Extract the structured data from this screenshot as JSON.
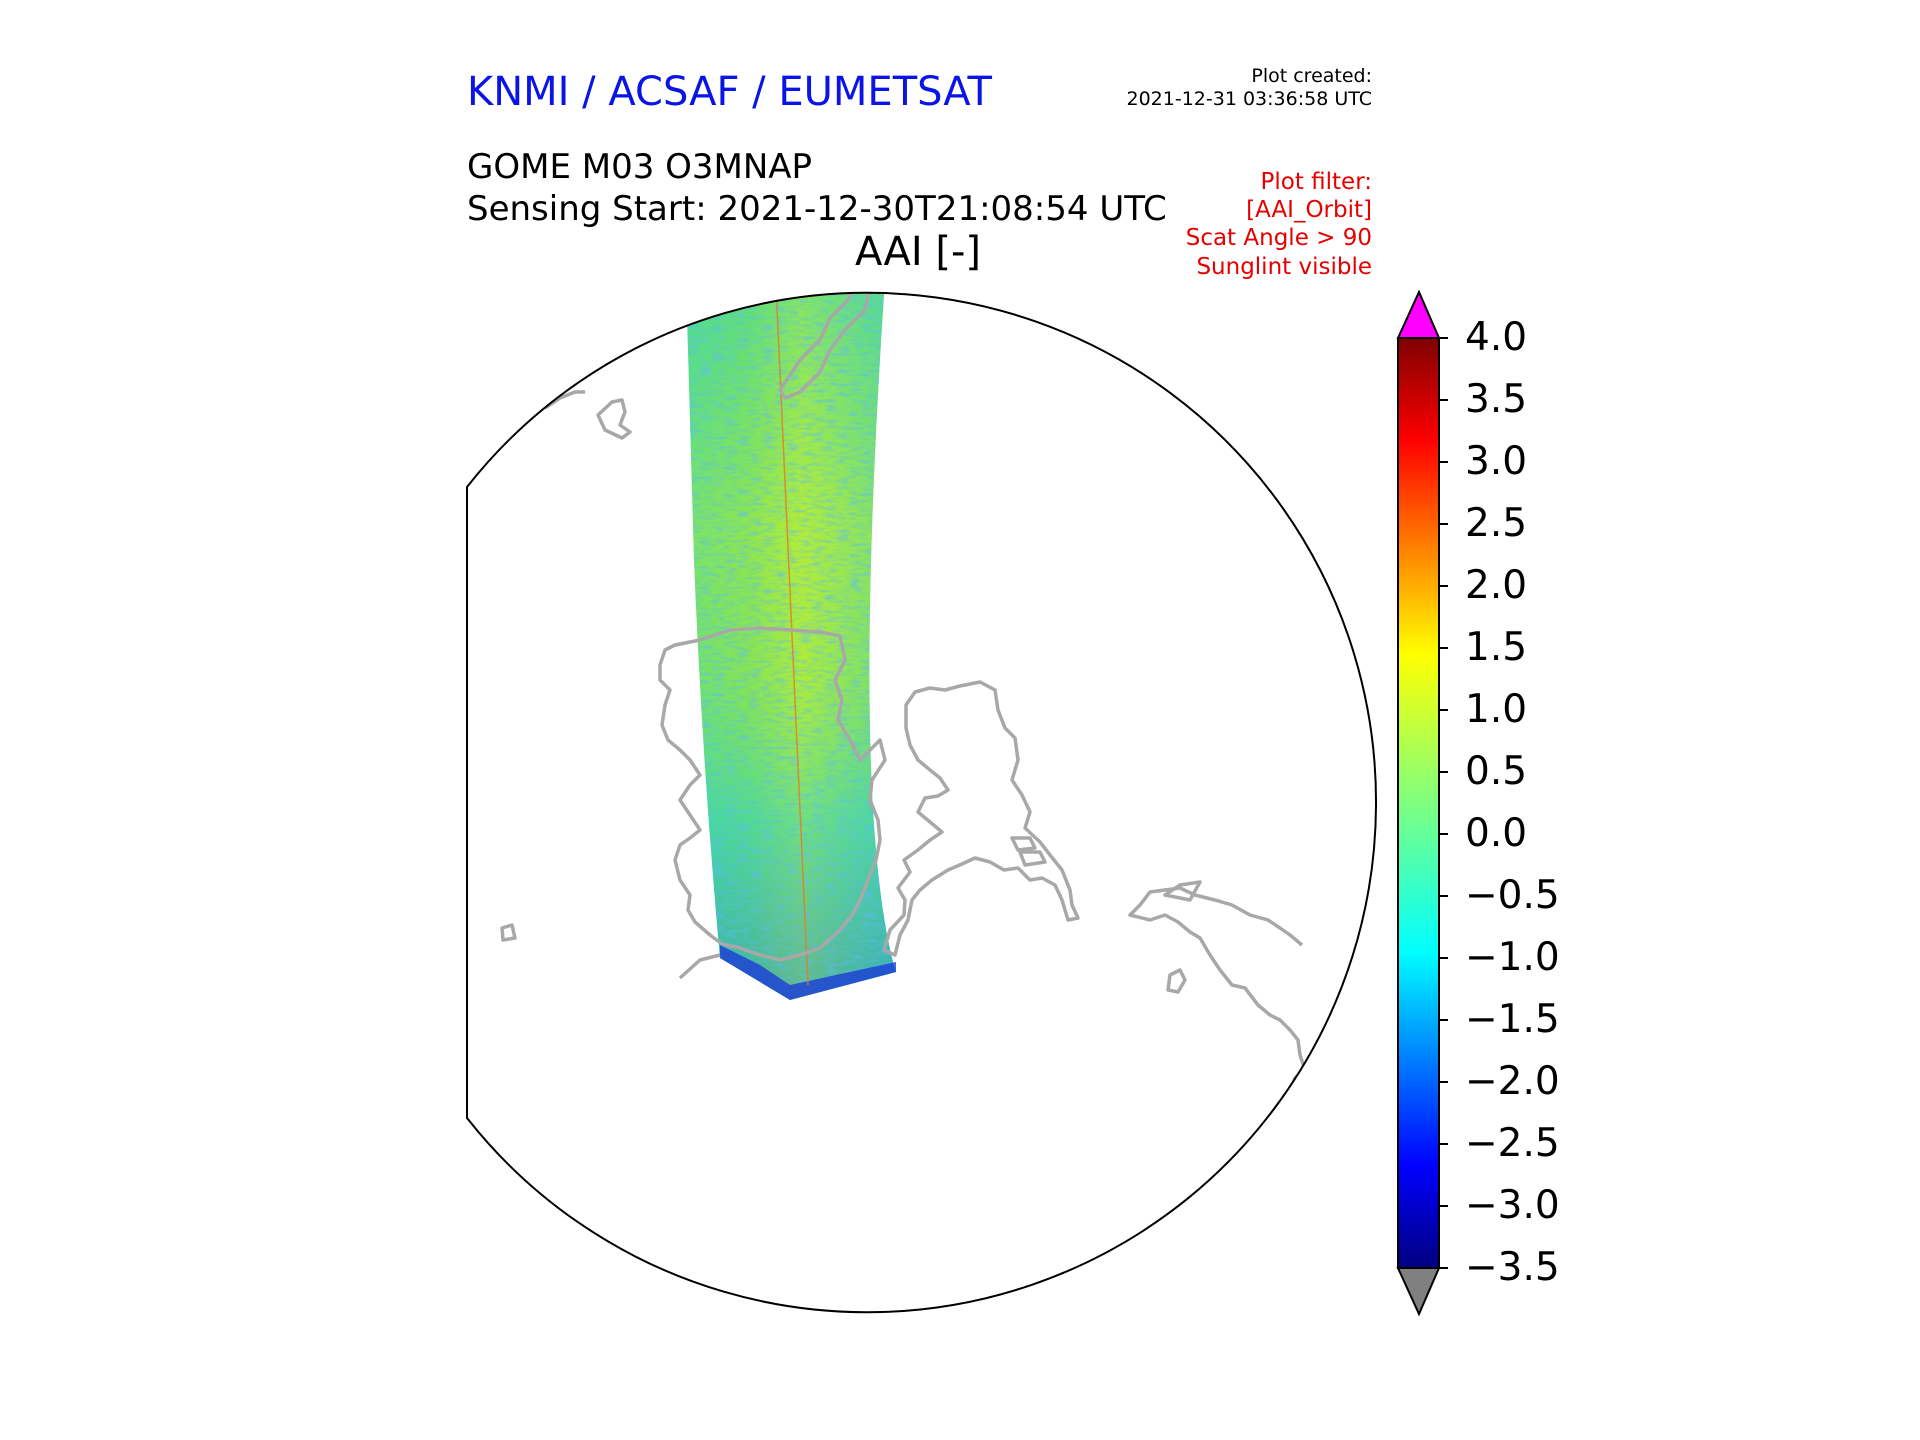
{
  "header": {
    "org_title": "KNMI / ACSAF / EUMETSAT",
    "created_label": "Plot created:",
    "created_value": "2021-12-31 03:36:58 UTC",
    "product_line": "GOME M03 O3MNAP",
    "sensing_line": "Sensing Start: 2021-12-30T21:08:54 UTC",
    "param_title": "AAI [-]"
  },
  "filters": {
    "label": "Plot filter:",
    "items": [
      "[AAI_Orbit]",
      "Scat Angle > 90",
      "Sunglint visible"
    ]
  },
  "colors": {
    "title_blue": "#0a14e6",
    "filter_red": "#e60000",
    "coastline": "#a8a8a8",
    "over_color": "#ff00ff",
    "under_color": "#808080"
  },
  "colorbar": {
    "colormap": "jet",
    "vmin": -3.5,
    "vmax": 4.0,
    "ticks": [
      "4.0",
      "3.5",
      "3.0",
      "2.5",
      "2.0",
      "1.5",
      "1.0",
      "0.5",
      "0.0",
      "−0.5",
      "−1.0",
      "−1.5",
      "−2.0",
      "−2.5",
      "−3.0",
      "−3.5"
    ],
    "extend": "both"
  },
  "map": {
    "projection": "polar orthographic",
    "features": [
      "coastlines",
      "satellite swath"
    ]
  }
}
